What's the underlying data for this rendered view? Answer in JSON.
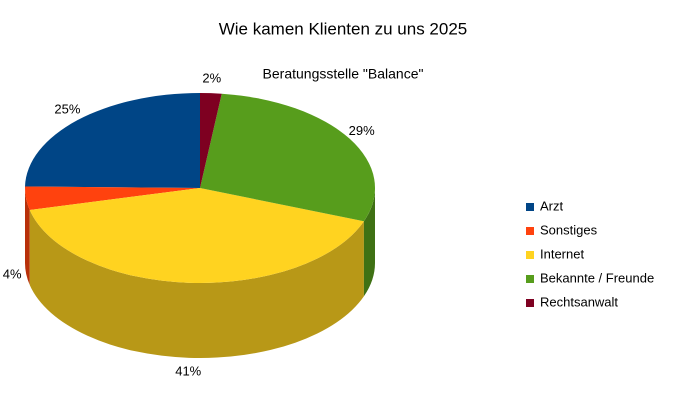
{
  "chart_data": {
    "type": "pie3d",
    "title": "Wie kamen Klienten zu uns 2025",
    "subtitle": "Beratungsstelle \"Balance\"",
    "categories": [
      "Arzt",
      "Sonstiges",
      "Internet",
      "Bekannte / Freunde",
      "Rechtsanwalt"
    ],
    "values": [
      25,
      4,
      41,
      29,
      2
    ],
    "value_labels": [
      "25%",
      "4%",
      "41%",
      "29%",
      "2%"
    ],
    "colors": [
      "#004586",
      "#ff420e",
      "#ffd320",
      "#579d1c",
      "#7e0021"
    ],
    "legend": "right"
  }
}
